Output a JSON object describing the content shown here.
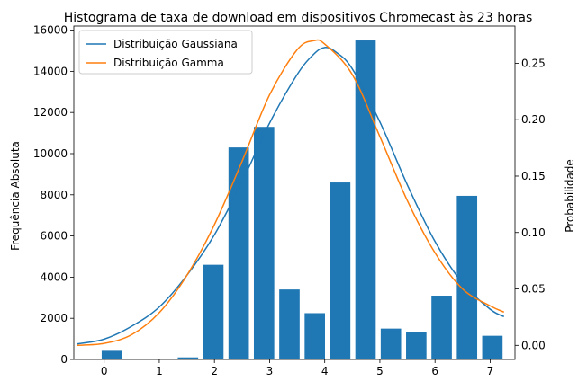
{
  "chart_data": {
    "type": "bar",
    "title": "Histograma de taxa de download em dispositivos Chromecast às 23 horas",
    "xlabel": "",
    "ylabel": "Frequência Absoluta",
    "y2label": "Probabilidade",
    "xlim": [
      -0.55,
      7.45
    ],
    "ylim": [
      0,
      16200
    ],
    "y2lim": [
      -0.0125,
      0.283
    ],
    "xticks": [
      0,
      1,
      2,
      3,
      4,
      5,
      6,
      7
    ],
    "yticks": [
      0,
      2000,
      4000,
      6000,
      8000,
      10000,
      12000,
      14000,
      16000
    ],
    "y2ticks": [
      0.0,
      0.05,
      0.1,
      0.15,
      0.2,
      0.25
    ],
    "y2tick_labels": [
      "0.00",
      "0.05",
      "0.10",
      "0.15",
      "0.20",
      "0.25"
    ],
    "grid": false,
    "legend_position": "top-left",
    "bar_width": 0.37,
    "bars": {
      "color": "#1f77b4",
      "x": [
        0.14,
        0.6,
        1.06,
        1.52,
        1.98,
        2.44,
        2.9,
        3.36,
        3.82,
        4.28,
        4.74,
        5.2,
        5.66,
        6.12,
        6.58,
        7.04
      ],
      "values": [
        420,
        0,
        0,
        100,
        4600,
        10300,
        11300,
        3400,
        2250,
        8600,
        15500,
        1500,
        1350,
        3100,
        7950,
        1150
      ]
    },
    "series": [
      {
        "name": "Distribuição Gaussiana",
        "color": "#1f77b4",
        "x": [
          -0.5,
          0.0,
          0.5,
          1.0,
          1.5,
          2.0,
          2.5,
          3.0,
          3.5,
          3.8,
          4.0,
          4.2,
          4.5,
          5.0,
          5.5,
          6.0,
          6.5,
          7.0,
          7.25
        ],
        "values": [
          0.0012,
          0.0055,
          0.017,
          0.034,
          0.062,
          0.098,
          0.145,
          0.197,
          0.24,
          0.258,
          0.264,
          0.26,
          0.245,
          0.198,
          0.142,
          0.092,
          0.055,
          0.032,
          0.0255
        ]
      },
      {
        "name": "Distribuição Gamma",
        "color": "#ff7f0e",
        "x": [
          -0.5,
          0.0,
          0.5,
          1.0,
          1.5,
          2.0,
          2.5,
          3.0,
          3.5,
          3.8,
          4.0,
          4.5,
          5.0,
          5.5,
          6.0,
          6.5,
          7.0,
          7.25
        ],
        "values": [
          0.0,
          0.0017,
          0.0095,
          0.029,
          0.062,
          0.107,
          0.163,
          0.222,
          0.262,
          0.27,
          0.267,
          0.24,
          0.185,
          0.128,
          0.082,
          0.05,
          0.035,
          0.0295
        ]
      }
    ]
  }
}
